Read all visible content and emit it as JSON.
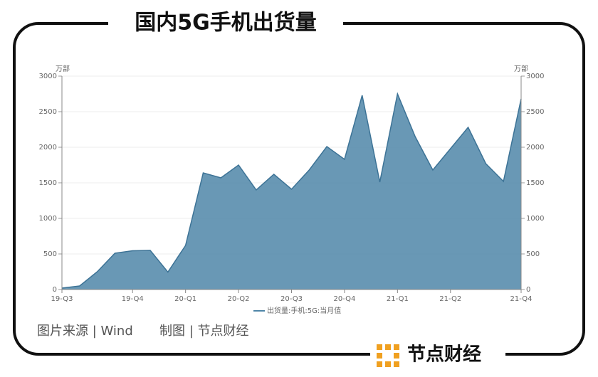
{
  "chart_data": {
    "type": "area",
    "title": "国内5G手机出货量",
    "y_label": "万部",
    "y2_label": "万部",
    "categories": [
      "19-Q3",
      null,
      null,
      null,
      "19-Q4",
      null,
      null,
      "20-Q1",
      null,
      null,
      "20-Q2",
      null,
      null,
      "20-Q3",
      null,
      null,
      "20-Q4",
      null,
      null,
      "21-Q1",
      null,
      null,
      "21-Q2",
      null,
      null,
      null,
      "21-Q4"
    ],
    "series": [
      {
        "name": "出货量:手机:5G:当月值",
        "color": "#4f86a8",
        "values": [
          20,
          50,
          250,
          510,
          545,
          550,
          245,
          620,
          1640,
          1570,
          1750,
          1400,
          1620,
          1410,
          1680,
          2010,
          1830,
          2730,
          1510,
          2750,
          2150,
          1680,
          1980,
          2280,
          1770,
          1520,
          2680
        ]
      }
    ],
    "ylim": [
      0,
      3000
    ],
    "yticks": [
      0,
      500,
      1000,
      1500,
      2000,
      2500,
      3000
    ],
    "y2lim": [
      0,
      3000
    ],
    "y2ticks": [
      0,
      500,
      1000,
      1500,
      2000,
      2500,
      3000
    ],
    "grid": true
  },
  "footer": {
    "source": "图片来源 | Wind",
    "credit": "制图 | 节点财经"
  },
  "logo": "节点财经"
}
